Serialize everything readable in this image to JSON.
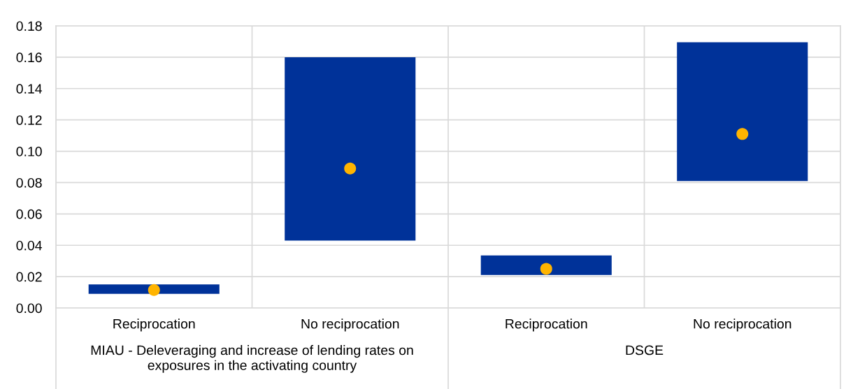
{
  "chart_data": {
    "type": "bar",
    "categories": [
      "Reciprocation",
      "No reciprocation",
      "Reciprocation",
      "No reciprocation"
    ],
    "series": [
      {
        "color": "#003299",
        "base": [
          0.009,
          0.043,
          0.021,
          0.081
        ],
        "values": [
          0.006,
          0.117,
          0.0125,
          0.0885
        ]
      },
      {
        "type": "scatter",
        "color": "#ffb400",
        "marker": "circle",
        "values": [
          0.0115,
          0.089,
          0.025,
          0.111
        ]
      }
    ],
    "ylim": [
      0,
      0.18
    ],
    "yticks": [
      {
        "value": 0,
        "label": "0.00"
      },
      {
        "value": 0.02,
        "label": "0.02"
      },
      {
        "value": 0.04,
        "label": "0.04"
      },
      {
        "value": 0.06,
        "label": "0.06"
      },
      {
        "value": 0.08,
        "label": "0.08"
      },
      {
        "value": 0.1,
        "label": "0.10"
      },
      {
        "value": 0.12,
        "label": "0.12"
      },
      {
        "value": 0.14,
        "label": "0.14"
      },
      {
        "value": 0.16,
        "label": "0.16"
      },
      {
        "value": 0.18,
        "label": "0.18"
      }
    ],
    "grid": true,
    "annotations": [
      "MIAU - Deleveraging and increase of lending rates on exposures in the activating country",
      "DSGE"
    ]
  }
}
